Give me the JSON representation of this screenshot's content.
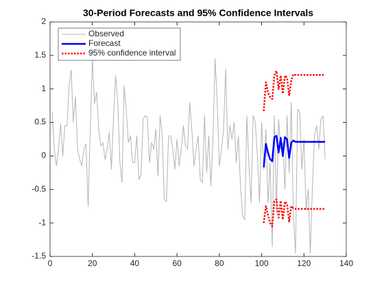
{
  "chart_data": {
    "type": "line",
    "title": "30-Period Forecasts and 95% Confidence Intervals",
    "xlim": [
      0,
      140
    ],
    "xticks": [
      0,
      20,
      40,
      60,
      80,
      100,
      120,
      140
    ],
    "ylim": [
      -1.5,
      2
    ],
    "yticks": [
      -1.5,
      -1,
      -0.5,
      0,
      0.5,
      1,
      1.5,
      2
    ],
    "legend": "northwest",
    "series": [
      {
        "name": "Observed",
        "color": "#b3b3b3",
        "width": 1,
        "style": "solid",
        "x": [
          1,
          2,
          3,
          4,
          5,
          6,
          7,
          8,
          9,
          10,
          11,
          12,
          13,
          14,
          15,
          16,
          17,
          18,
          19,
          20,
          21,
          22,
          23,
          24,
          25,
          26,
          27,
          28,
          29,
          30,
          31,
          32,
          33,
          34,
          35,
          36,
          37,
          38,
          39,
          40,
          41,
          42,
          43,
          44,
          45,
          46,
          47,
          48,
          49,
          50,
          51,
          52,
          53,
          54,
          55,
          56,
          57,
          58,
          59,
          60,
          61,
          62,
          63,
          64,
          65,
          66,
          67,
          68,
          69,
          70,
          71,
          72,
          73,
          74,
          75,
          76,
          77,
          78,
          79,
          80,
          81,
          82,
          83,
          84,
          85,
          86,
          87,
          88,
          89,
          90,
          91,
          92,
          93,
          94,
          95,
          96,
          97,
          98,
          99,
          100,
          101,
          102,
          103,
          104,
          105,
          106,
          107,
          108,
          109,
          110,
          111,
          112,
          113,
          114,
          115,
          116,
          117,
          118,
          119,
          120,
          121,
          122,
          123,
          124,
          125,
          126,
          127,
          128,
          129,
          130
        ],
        "values": [
          0.65,
          0.1,
          -0.15,
          0.1,
          0.48,
          0.0,
          0.45,
          0.45,
          1.05,
          1.28,
          0.5,
          0.88,
          0.1,
          -0.05,
          -0.15,
          0.1,
          0.18,
          -0.75,
          0.4,
          1.45,
          0.78,
          0.95,
          0.4,
          0.15,
          0.2,
          -0.05,
          0.1,
          0.35,
          -0.2,
          0.6,
          1.2,
          0.8,
          -0.1,
          -0.4,
          1.05,
          0.7,
          0.2,
          0.3,
          -0.1,
          -0.1,
          0.3,
          -0.35,
          -0.28,
          0.55,
          0.6,
          0.58,
          -0.1,
          0.2,
          0.1,
          0.4,
          -0.3,
          0.6,
          0.3,
          -0.65,
          -0.68,
          0.3,
          0.3,
          0.1,
          -0.2,
          0.25,
          -0.15,
          0.1,
          0.45,
          0.15,
          0.1,
          0.8,
          0.4,
          -0.15,
          0.1,
          0.3,
          -0.35,
          -0.4,
          0.6,
          -0.25,
          0.3,
          -0.45,
          0.25,
          1.45,
          0.8,
          -0.15,
          0.1,
          0.4,
          1.3,
          0.1,
          0.45,
          0.25,
          0.5,
          -0.1,
          0.3,
          -0.45,
          -0.9,
          -0.95,
          0.6,
          -0.15,
          -0.7,
          0.6,
          0.5,
          0.0,
          -0.7,
          0.5,
          -0.2,
          0.4,
          -0.7,
          -0.1,
          -1.35,
          0.6,
          -0.85,
          0.55,
          0.1,
          0.2,
          -0.5,
          0.6,
          -0.25,
          0.8,
          -0.9,
          -1.45,
          0.7,
          0.65,
          -0.2,
          0.25,
          -0.8,
          -0.5,
          -1.45,
          -0.45,
          0.3,
          0.45,
          0.1,
          0.55,
          0.6,
          -0.05
        ]
      },
      {
        "name": "Forecast",
        "color": "#0000ff",
        "width": 2.5,
        "style": "solid",
        "x": [
          101,
          102,
          103,
          104,
          105,
          106,
          107,
          108,
          109,
          110,
          111,
          112,
          113,
          114,
          115,
          116,
          117,
          118,
          119,
          120,
          121,
          122,
          123,
          124,
          125,
          126,
          127,
          128,
          129,
          130
        ],
        "values": [
          -0.17,
          0.18,
          0.05,
          -0.05,
          -0.08,
          0.28,
          0.3,
          0.05,
          0.27,
          0.0,
          0.28,
          0.25,
          -0.03,
          0.2,
          0.23,
          0.21,
          0.21,
          0.21,
          0.21,
          0.21,
          0.21,
          0.21,
          0.21,
          0.21,
          0.21,
          0.21,
          0.21,
          0.21,
          0.21,
          0.21
        ]
      },
      {
        "name": "95% confidence interval",
        "color": "#ff0000",
        "width": 2.5,
        "style": "dotted",
        "x": [
          101,
          102,
          103,
          104,
          105,
          106,
          107,
          108,
          109,
          110,
          111,
          112,
          113,
          114,
          115,
          116,
          117,
          118,
          119,
          120,
          121,
          122,
          123,
          124,
          125,
          126,
          127,
          128,
          129,
          130
        ],
        "upper": [
          0.67,
          1.1,
          0.95,
          0.88,
          0.85,
          1.2,
          1.27,
          1.0,
          1.2,
          0.93,
          1.2,
          1.17,
          0.9,
          1.13,
          1.22,
          1.21,
          1.21,
          1.21,
          1.21,
          1.21,
          1.21,
          1.21,
          1.21,
          1.21,
          1.21,
          1.21,
          1.21,
          1.21,
          1.21,
          1.21
        ],
        "lower": [
          -1.0,
          -0.75,
          -0.88,
          -1.0,
          -1.05,
          -0.68,
          -0.65,
          -0.92,
          -0.67,
          -0.95,
          -0.68,
          -0.72,
          -0.98,
          -0.75,
          -0.78,
          -0.79,
          -0.79,
          -0.79,
          -0.79,
          -0.79,
          -0.79,
          -0.79,
          -0.79,
          -0.79,
          -0.79,
          -0.79,
          -0.79,
          -0.79,
          -0.79,
          -0.79
        ]
      }
    ]
  }
}
